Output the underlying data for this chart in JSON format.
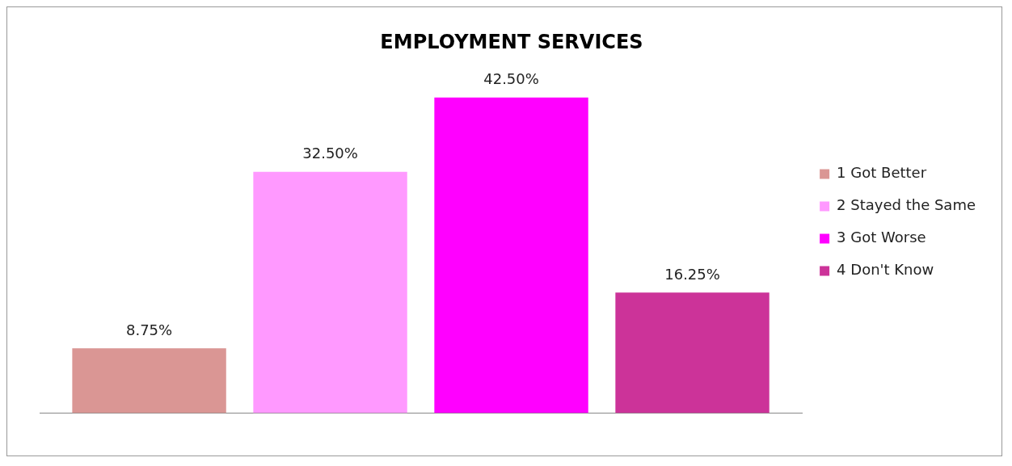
{
  "chart_data": {
    "type": "bar",
    "title": "EMPLOYMENT SERVICES",
    "categories": [
      null
    ],
    "legend": "right",
    "grid": false,
    "series": [
      {
        "name": "1 Got Better",
        "color": "#da9694",
        "values": [
          8.75
        ],
        "value_labels": [
          "8.75%"
        ]
      },
      {
        "name": "2 Stayed the Same",
        "color": "#ff99ff",
        "values": [
          32.5
        ],
        "value_labels": [
          "32.50%"
        ]
      },
      {
        "name": "3 Got Worse",
        "color": "#ff00ff",
        "values": [
          42.5
        ],
        "value_labels": [
          "42.50%"
        ]
      },
      {
        "name": "4 Don't Know",
        "color": "#cc3399",
        "values": [
          16.25
        ],
        "value_labels": [
          "16.25%"
        ]
      }
    ]
  }
}
